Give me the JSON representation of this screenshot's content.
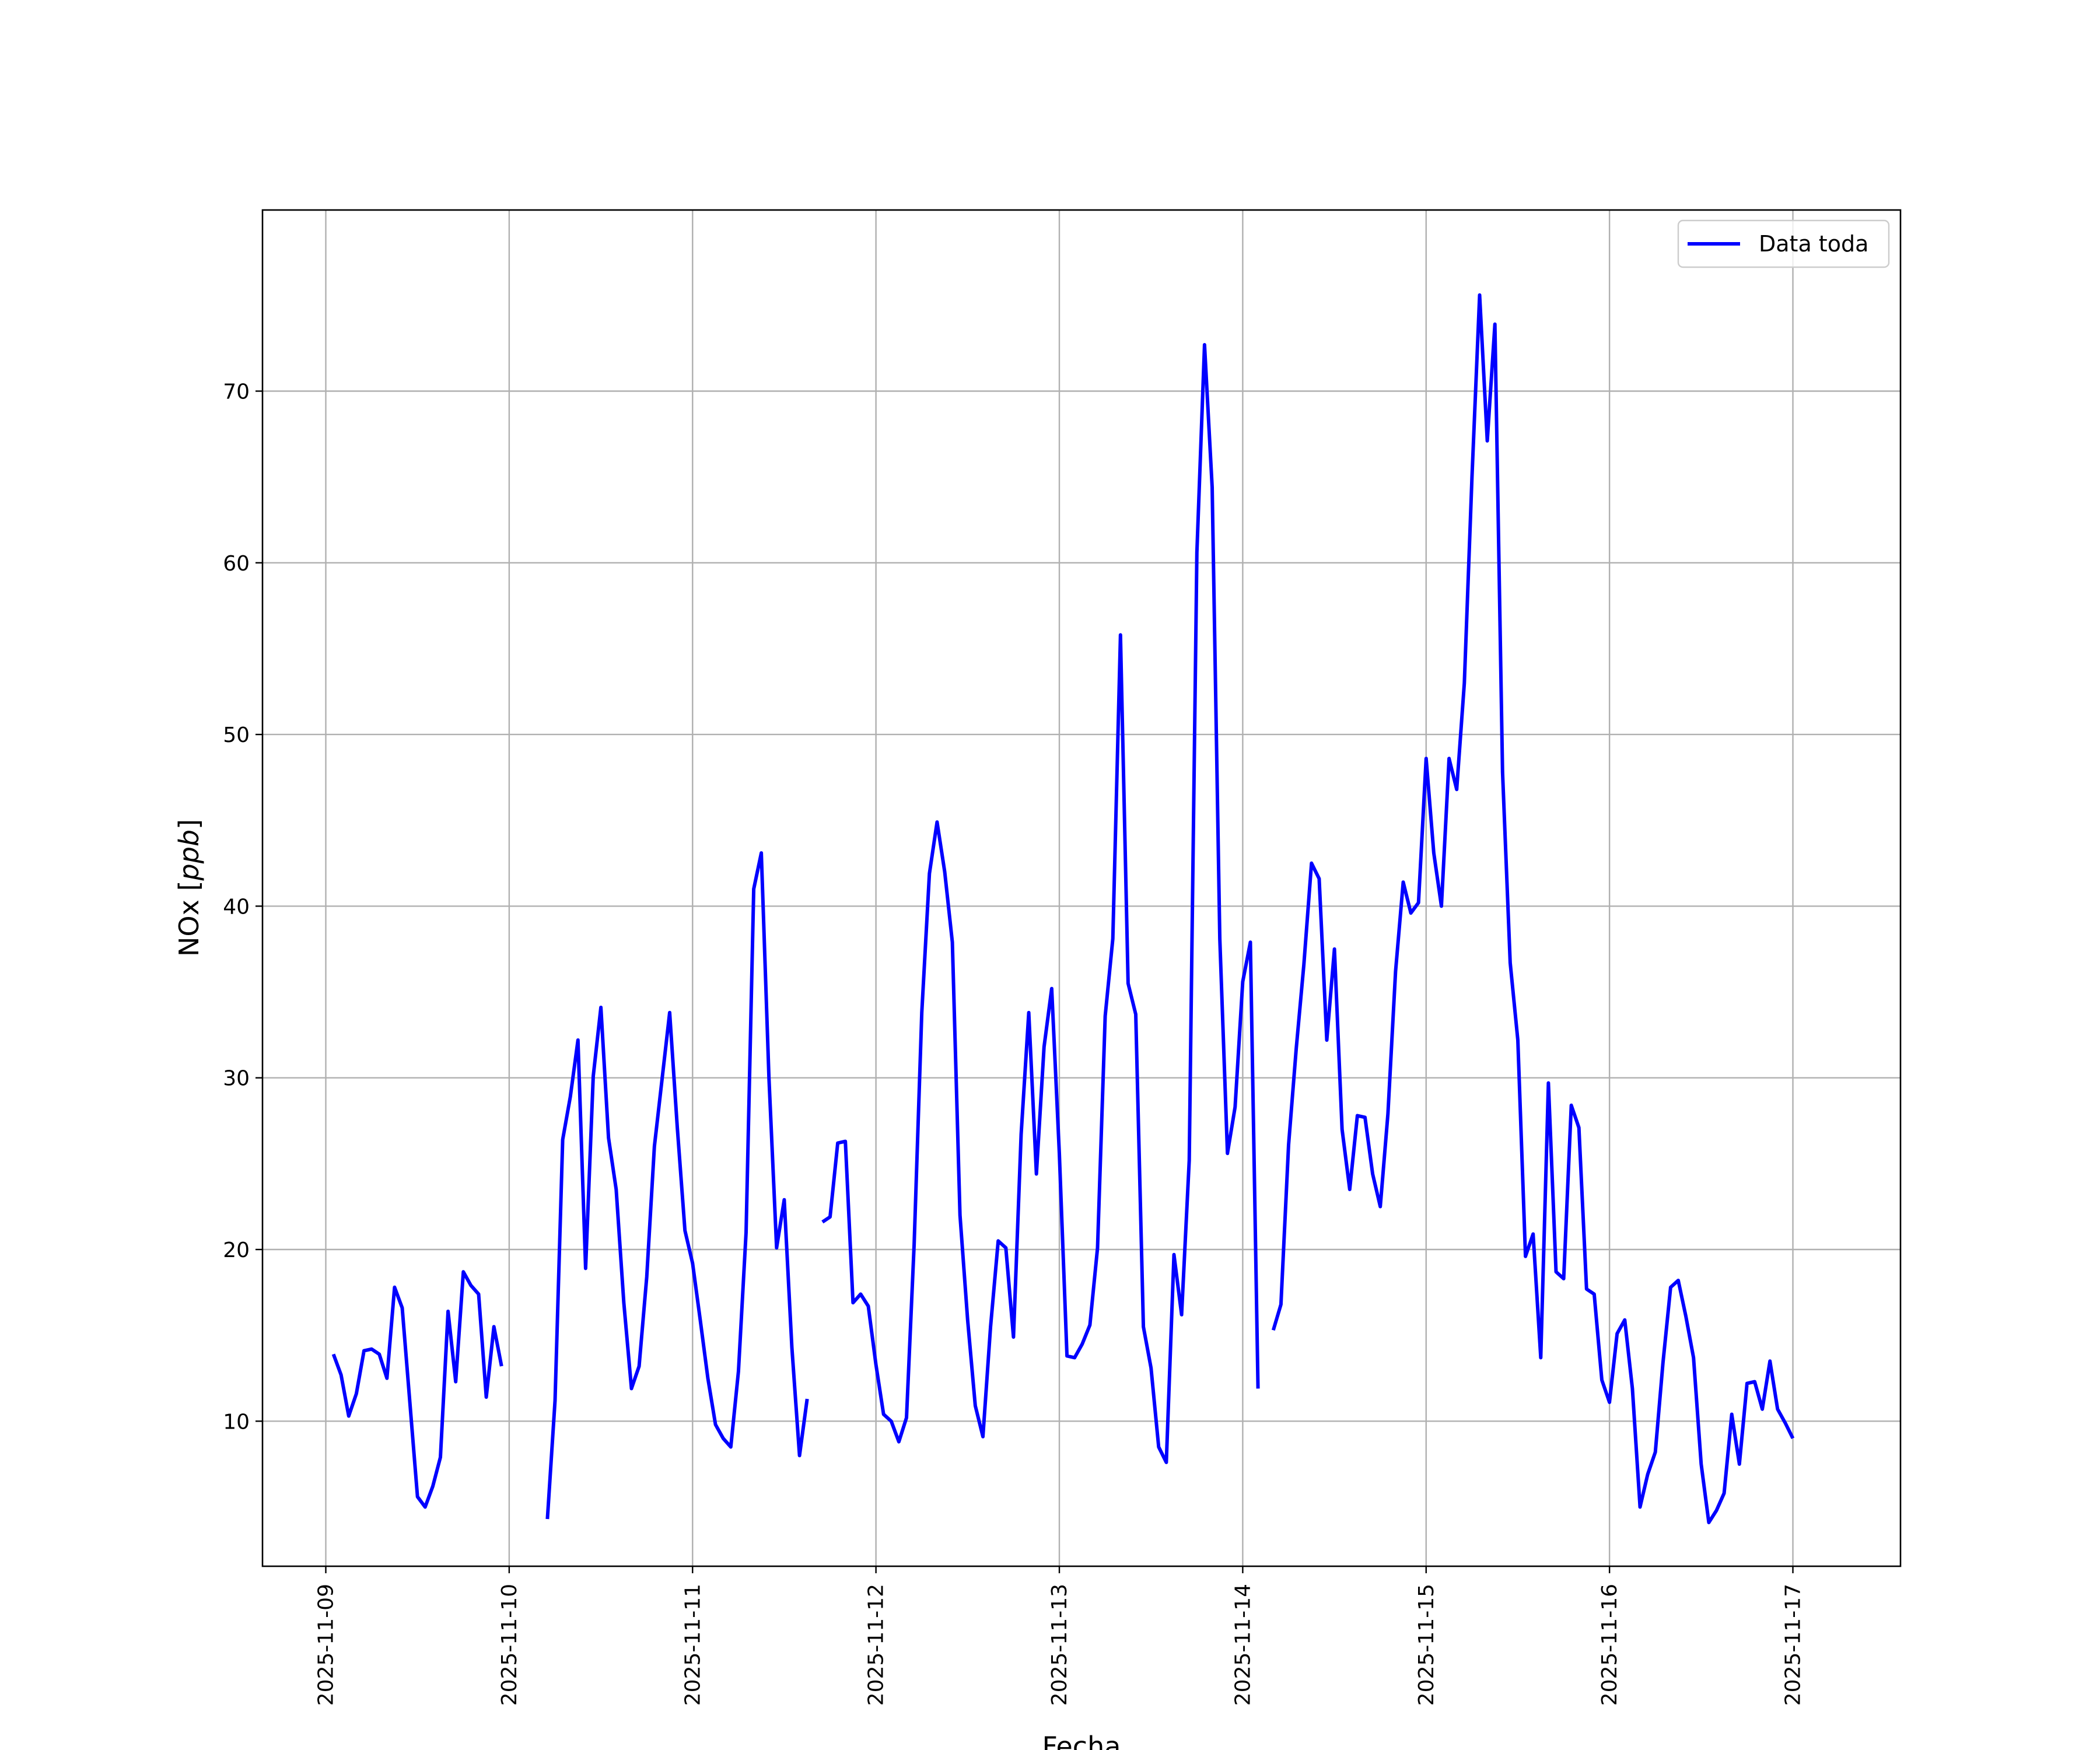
{
  "chart_data": {
    "type": "line",
    "title": "",
    "xlabel": "Fecha",
    "ylabel": "NOx [ppb]",
    "ylabel_parts": {
      "plain": "NOx [",
      "italic": "ppb",
      "close": "]"
    },
    "x_type": "datetime",
    "xlim": [
      "2025-11-08 15:43",
      "2025-11-17 14:05"
    ],
    "ylim": [
      1.55,
      80.55
    ],
    "x_ticks": [
      "2025-11-09",
      "2025-11-10",
      "2025-11-11",
      "2025-11-12",
      "2025-11-13",
      "2025-11-14",
      "2025-11-15",
      "2025-11-16",
      "2025-11-17"
    ],
    "y_ticks": [
      10,
      20,
      30,
      40,
      50,
      60,
      70
    ],
    "grid": true,
    "legend": {
      "location": "top-right",
      "entries": [
        "Data toda"
      ]
    },
    "series": [
      {
        "name": "Data toda",
        "color": "#0000ff",
        "points": [
          [
            "2025-11-09 01:00",
            13.9
          ],
          [
            "2025-11-09 02:00",
            12.7
          ],
          [
            "2025-11-09 03:00",
            10.3
          ],
          [
            "2025-11-09 04:00",
            11.6
          ],
          [
            "2025-11-09 05:00",
            14.1
          ],
          [
            "2025-11-09 06:00",
            14.2
          ],
          [
            "2025-11-09 07:00",
            13.9
          ],
          [
            "2025-11-09 08:00",
            12.5
          ],
          [
            "2025-11-09 09:00",
            17.8
          ],
          [
            "2025-11-09 10:00",
            16.6
          ],
          [
            "2025-11-09 11:00",
            11.1
          ],
          [
            "2025-11-09 12:00",
            5.6
          ],
          [
            "2025-11-09 13:00",
            5.0
          ],
          [
            "2025-11-09 14:00",
            6.2
          ],
          [
            "2025-11-09 15:00",
            7.9
          ],
          [
            "2025-11-09 16:00",
            16.4
          ],
          [
            "2025-11-09 17:00",
            12.3
          ],
          [
            "2025-11-09 18:00",
            18.7
          ],
          [
            "2025-11-09 19:00",
            17.9
          ],
          [
            "2025-11-09 20:00",
            17.4
          ],
          [
            "2025-11-09 21:00",
            11.4
          ],
          [
            "2025-11-09 22:00",
            15.5
          ],
          [
            "2025-11-09 23:00",
            13.2
          ],
          null,
          [
            "2025-11-10 05:00",
            4.3
          ],
          [
            "2025-11-10 06:00",
            11.2
          ],
          [
            "2025-11-10 07:00",
            26.4
          ],
          [
            "2025-11-10 08:00",
            28.9
          ],
          [
            "2025-11-10 09:00",
            32.2
          ],
          [
            "2025-11-10 10:00",
            18.9
          ],
          [
            "2025-11-10 11:00",
            30.1
          ],
          [
            "2025-11-10 12:00",
            34.1
          ],
          [
            "2025-11-10 13:00",
            26.5
          ],
          [
            "2025-11-10 14:00",
            23.5
          ],
          [
            "2025-11-10 15:00",
            16.9
          ],
          [
            "2025-11-10 16:00",
            11.9
          ],
          [
            "2025-11-10 17:00",
            13.2
          ],
          [
            "2025-11-10 18:00",
            18.4
          ],
          [
            "2025-11-10 19:00",
            26.0
          ],
          [
            "2025-11-10 20:00",
            29.9
          ],
          [
            "2025-11-10 21:00",
            33.8
          ],
          [
            "2025-11-10 22:00",
            27.1
          ],
          [
            "2025-11-10 23:00",
            21.1
          ],
          [
            "2025-11-11 00:00",
            19.2
          ],
          [
            "2025-11-11 01:00",
            15.9
          ],
          [
            "2025-11-11 02:00",
            12.5
          ],
          [
            "2025-11-11 03:00",
            9.8
          ],
          [
            "2025-11-11 04:00",
            9.0
          ],
          [
            "2025-11-11 05:00",
            8.5
          ],
          [
            "2025-11-11 06:00",
            12.9
          ],
          [
            "2025-11-11 07:00",
            21.0
          ],
          [
            "2025-11-11 08:00",
            41.0
          ],
          [
            "2025-11-11 09:00",
            43.1
          ],
          [
            "2025-11-11 10:00",
            30.0
          ],
          [
            "2025-11-11 11:00",
            20.1
          ],
          [
            "2025-11-11 12:00",
            22.9
          ],
          [
            "2025-11-11 13:00",
            14.3
          ],
          [
            "2025-11-11 14:00",
            8.0
          ],
          [
            "2025-11-11 15:00",
            11.3
          ],
          null,
          [
            "2025-11-11 17:00",
            21.6
          ],
          [
            "2025-11-11 18:00",
            21.9
          ],
          [
            "2025-11-11 19:00",
            26.2
          ],
          [
            "2025-11-11 20:00",
            26.3
          ],
          [
            "2025-11-11 21:00",
            16.9
          ],
          [
            "2025-11-11 22:00",
            17.4
          ],
          [
            "2025-11-11 23:00",
            16.7
          ],
          [
            "2025-11-12 00:00",
            13.3
          ],
          [
            "2025-11-12 01:00",
            10.4
          ],
          [
            "2025-11-12 02:00",
            10.0
          ],
          [
            "2025-11-12 03:00",
            8.8
          ],
          [
            "2025-11-12 04:00",
            10.2
          ],
          [
            "2025-11-12 05:00",
            20.3
          ],
          [
            "2025-11-12 06:00",
            33.8
          ],
          [
            "2025-11-12 07:00",
            41.9
          ],
          [
            "2025-11-12 08:00",
            44.9
          ],
          [
            "2025-11-12 09:00",
            42.0
          ],
          [
            "2025-11-12 10:00",
            37.9
          ],
          [
            "2025-11-12 11:00",
            22.0
          ],
          [
            "2025-11-12 12:00",
            15.9
          ],
          [
            "2025-11-12 13:00",
            10.9
          ],
          [
            "2025-11-12 14:00",
            9.1
          ],
          [
            "2025-11-12 15:00",
            15.5
          ],
          [
            "2025-11-12 16:00",
            20.5
          ],
          [
            "2025-11-12 17:00",
            20.1
          ],
          [
            "2025-11-12 18:00",
            14.9
          ],
          [
            "2025-11-12 19:00",
            26.7
          ],
          [
            "2025-11-12 20:00",
            33.8
          ],
          [
            "2025-11-12 21:00",
            24.4
          ],
          [
            "2025-11-12 22:00",
            31.8
          ],
          [
            "2025-11-12 23:00",
            35.2
          ],
          [
            "2025-11-13 00:00",
            25.6
          ],
          [
            "2025-11-13 01:00",
            13.8
          ],
          [
            "2025-11-13 02:00",
            13.7
          ],
          [
            "2025-11-13 03:00",
            14.5
          ],
          [
            "2025-11-13 04:00",
            15.6
          ],
          [
            "2025-11-13 05:00",
            20.1
          ],
          [
            "2025-11-13 06:00",
            33.6
          ],
          [
            "2025-11-13 07:00",
            38.1
          ],
          [
            "2025-11-13 08:00",
            55.8
          ],
          [
            "2025-11-13 09:00",
            35.5
          ],
          [
            "2025-11-13 10:00",
            33.7
          ],
          [
            "2025-11-13 11:00",
            15.5
          ],
          [
            "2025-11-13 12:00",
            13.1
          ],
          [
            "2025-11-13 13:00",
            8.5
          ],
          [
            "2025-11-13 14:00",
            7.6
          ],
          [
            "2025-11-13 15:00",
            19.7
          ],
          [
            "2025-11-13 16:00",
            16.2
          ],
          [
            "2025-11-13 17:00",
            25.2
          ],
          [
            "2025-11-13 18:00",
            60.6
          ],
          [
            "2025-11-13 19:00",
            72.7
          ],
          [
            "2025-11-13 20:00",
            64.4
          ],
          [
            "2025-11-13 21:00",
            38.1
          ],
          [
            "2025-11-13 22:00",
            25.6
          ],
          [
            "2025-11-13 23:00",
            28.3
          ],
          [
            "2025-11-14 00:00",
            35.6
          ],
          [
            "2025-11-14 01:00",
            37.9
          ],
          [
            "2025-11-14 02:00",
            11.9
          ],
          null,
          [
            "2025-11-14 04:00",
            15.3
          ],
          [
            "2025-11-14 05:00",
            16.8
          ],
          [
            "2025-11-14 06:00",
            26.1
          ],
          [
            "2025-11-14 07:00",
            31.7
          ],
          [
            "2025-11-14 08:00",
            36.6
          ],
          [
            "2025-11-14 09:00",
            42.5
          ],
          [
            "2025-11-14 10:00",
            41.6
          ],
          [
            "2025-11-14 11:00",
            32.2
          ],
          [
            "2025-11-14 12:00",
            37.5
          ],
          [
            "2025-11-14 13:00",
            27.0
          ],
          [
            "2025-11-14 14:00",
            23.5
          ],
          [
            "2025-11-14 15:00",
            27.8
          ],
          [
            "2025-11-14 16:00",
            27.7
          ],
          [
            "2025-11-14 17:00",
            24.4
          ],
          [
            "2025-11-14 18:00",
            22.5
          ],
          [
            "2025-11-14 19:00",
            27.9
          ],
          [
            "2025-11-14 20:00",
            36.2
          ],
          [
            "2025-11-14 21:00",
            41.4
          ],
          [
            "2025-11-14 22:00",
            39.6
          ],
          [
            "2025-11-14 23:00",
            40.2
          ],
          [
            "2025-11-15 00:00",
            48.6
          ],
          [
            "2025-11-15 01:00",
            43.1
          ],
          [
            "2025-11-15 02:00",
            40.0
          ],
          [
            "2025-11-15 03:00",
            48.6
          ],
          [
            "2025-11-15 04:00",
            46.8
          ],
          [
            "2025-11-15 05:00",
            53.0
          ],
          [
            "2025-11-15 06:00",
            65.0
          ],
          [
            "2025-11-15 07:00",
            75.6
          ],
          [
            "2025-11-15 08:00",
            67.1
          ],
          [
            "2025-11-15 09:00",
            73.9
          ],
          [
            "2025-11-15 10:00",
            47.8
          ],
          [
            "2025-11-15 11:00",
            36.7
          ],
          [
            "2025-11-15 12:00",
            32.2
          ],
          [
            "2025-11-15 13:00",
            19.6
          ],
          [
            "2025-11-15 14:00",
            20.9
          ],
          [
            "2025-11-15 15:00",
            13.7
          ],
          [
            "2025-11-15 16:00",
            29.7
          ],
          [
            "2025-11-15 17:00",
            18.7
          ],
          [
            "2025-11-15 18:00",
            18.3
          ],
          [
            "2025-11-15 19:00",
            28.4
          ],
          [
            "2025-11-15 20:00",
            27.1
          ],
          [
            "2025-11-15 21:00",
            17.7
          ],
          [
            "2025-11-15 22:00",
            17.4
          ],
          [
            "2025-11-15 23:00",
            12.4
          ],
          [
            "2025-11-16 00:00",
            11.1
          ],
          [
            "2025-11-16 01:00",
            15.1
          ],
          [
            "2025-11-16 02:00",
            15.9
          ],
          [
            "2025-11-16 03:00",
            11.9
          ],
          [
            "2025-11-16 04:00",
            5.0
          ],
          [
            "2025-11-16 05:00",
            6.9
          ],
          [
            "2025-11-16 06:00",
            8.2
          ],
          [
            "2025-11-16 07:00",
            13.4
          ],
          [
            "2025-11-16 08:00",
            17.8
          ],
          [
            "2025-11-16 09:00",
            18.2
          ],
          [
            "2025-11-16 10:00",
            16.1
          ],
          [
            "2025-11-16 11:00",
            13.7
          ],
          [
            "2025-11-16 12:00",
            7.5
          ],
          [
            "2025-11-16 13:00",
            4.1
          ],
          [
            "2025-11-16 14:00",
            4.8
          ],
          [
            "2025-11-16 15:00",
            5.8
          ],
          [
            "2025-11-16 16:00",
            10.4
          ],
          [
            "2025-11-16 17:00",
            7.5
          ],
          [
            "2025-11-16 18:00",
            12.2
          ],
          [
            "2025-11-16 19:00",
            12.3
          ],
          [
            "2025-11-16 20:00",
            10.7
          ],
          [
            "2025-11-16 21:00",
            13.5
          ],
          [
            "2025-11-16 22:00",
            10.7
          ],
          [
            "2025-11-16 23:00",
            9.9
          ],
          [
            "2025-11-17 00:00",
            9.0
          ]
        ]
      }
    ]
  }
}
